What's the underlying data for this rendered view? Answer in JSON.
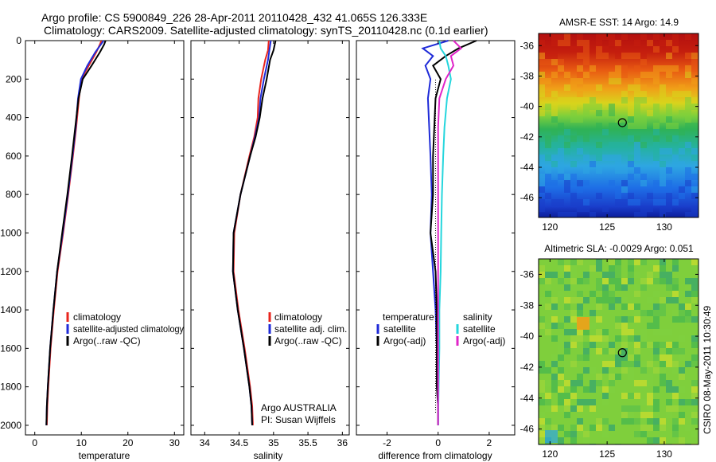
{
  "header": {
    "line1": "Argo profile: CS 5900849_226 28-Apr-2011 20110428_432 41.065S 126.333E",
    "line2": "Climatology: CARS2009. Satellite-adjusted climatology: synTS_20110428.nc (0.1d earlier)"
  },
  "colors": {
    "climatology": "#e8251d",
    "satellite": "#1f2bd8",
    "argo": "#000000",
    "salinity_satellite": "#25d6dd",
    "salinity_argo": "#e025c8"
  },
  "chart_data": [
    {
      "type": "line",
      "name": "temperature-panel",
      "xlabel": "temperature",
      "ylabel": "",
      "xlim": [
        -2,
        32
      ],
      "ylim": [
        2050,
        0
      ],
      "xticks": [
        0,
        10,
        20,
        30
      ],
      "yticks": [
        0,
        200,
        400,
        600,
        800,
        1000,
        1200,
        1400,
        1600,
        1800,
        2000
      ],
      "legend": [
        "climatology",
        "satellite-adjusted climatology",
        "Argo(..raw -QC)"
      ],
      "series": [
        {
          "name": "climatology",
          "x": [
            14.3,
            14.0,
            13.2,
            11.6,
            10.0,
            9.5,
            8.9,
            8.2,
            7.2,
            6.1,
            4.9,
            4.1,
            3.4,
            2.9,
            2.7,
            2.6
          ],
          "y": [
            0,
            20,
            60,
            130,
            200,
            300,
            450,
            600,
            800,
            1000,
            1200,
            1400,
            1600,
            1800,
            1900,
            2000
          ]
        },
        {
          "name": "satellite-adjusted climatology",
          "x": [
            14.8,
            14.2,
            13.0,
            11.3,
            9.9,
            9.3,
            8.8,
            8.1,
            7.1,
            6.0,
            4.8,
            4.0,
            3.3,
            2.8,
            2.6,
            2.5
          ],
          "y": [
            0,
            20,
            60,
            130,
            200,
            300,
            450,
            600,
            800,
            1000,
            1200,
            1400,
            1600,
            1800,
            1900,
            2000
          ]
        },
        {
          "name": "Argo(..raw -QC)",
          "x": [
            15.2,
            14.9,
            14.0,
            12.2,
            10.3,
            9.4,
            8.7,
            8.0,
            7.0,
            5.9,
            4.8,
            4.0,
            3.3,
            2.8,
            2.6,
            2.5
          ],
          "y": [
            0,
            20,
            60,
            130,
            200,
            300,
            450,
            600,
            800,
            1000,
            1200,
            1400,
            1600,
            1800,
            1900,
            2000
          ]
        }
      ]
    },
    {
      "type": "line",
      "name": "salinity-panel",
      "xlabel": "salinity",
      "xlim": [
        33.8,
        36.1
      ],
      "ylim": [
        2050,
        0
      ],
      "xticks": [
        34,
        34.5,
        35,
        35.5,
        36
      ],
      "annotation": [
        "Argo AUSTRALIA",
        "PI: Susan Wijffels"
      ],
      "legend": [
        "climatology",
        "satellite adj. clim.",
        "Argo(..raw -QC)"
      ],
      "series": [
        {
          "name": "climatology",
          "x": [
            34.93,
            34.92,
            34.88,
            34.82,
            34.78,
            34.77,
            34.72,
            34.65,
            34.52,
            34.43,
            34.42,
            34.49,
            34.58,
            34.66,
            34.69,
            34.7
          ],
          "y": [
            0,
            50,
            100,
            200,
            300,
            400,
            500,
            600,
            800,
            1000,
            1200,
            1400,
            1600,
            1800,
            1900,
            2000
          ]
        },
        {
          "name": "satellite adj. clim.",
          "x": [
            34.96,
            34.94,
            34.92,
            34.86,
            34.81,
            34.79,
            34.73,
            34.66,
            34.52,
            34.42,
            34.41,
            34.48,
            34.57,
            34.65,
            34.68,
            34.69
          ],
          "y": [
            0,
            50,
            100,
            200,
            300,
            400,
            500,
            600,
            800,
            1000,
            1200,
            1400,
            1600,
            1800,
            1900,
            2000
          ]
        },
        {
          "name": "Argo(..raw -QC)",
          "x": [
            35.03,
            35.0,
            34.95,
            34.9,
            34.84,
            34.8,
            34.74,
            34.66,
            34.52,
            34.42,
            34.41,
            34.48,
            34.57,
            34.65,
            34.68,
            34.69
          ],
          "y": [
            0,
            50,
            100,
            200,
            300,
            400,
            500,
            600,
            800,
            1000,
            1200,
            1400,
            1600,
            1800,
            1900,
            2000
          ]
        }
      ]
    },
    {
      "type": "line",
      "name": "difference-panel",
      "xlabel": "difference from climatology",
      "xlim": [
        -3.2,
        3.0
      ],
      "ylim": [
        2050,
        0
      ],
      "xticks": [
        -2,
        0,
        2
      ],
      "legend_groups": [
        {
          "title": "temperature",
          "entries": [
            "satellite",
            "Argo(-adj)"
          ]
        },
        {
          "title": "salinity",
          "entries": [
            "satellite",
            "Argo(-adj)"
          ]
        }
      ],
      "series": [
        {
          "name": "temperature satellite",
          "x": [
            0.4,
            -0.6,
            -0.2,
            -0.5,
            -0.3,
            -0.4,
            -0.35,
            -0.3,
            -0.25,
            -0.3,
            -0.2,
            -0.1,
            -0.05,
            -0.05,
            0,
            0
          ],
          "y": [
            0,
            40,
            80,
            130,
            200,
            300,
            450,
            600,
            800,
            1000,
            1200,
            1400,
            1600,
            1800,
            1900,
            2000
          ]
        },
        {
          "name": "temperature Argo(-adj)",
          "x": [
            1.5,
            0.8,
            0.3,
            -0.2,
            0.1,
            -0.1,
            -0.15,
            -0.2,
            -0.2,
            -0.3,
            -0.1,
            -0.05,
            -0.05,
            -0.05,
            0,
            0
          ],
          "y": [
            0,
            40,
            80,
            130,
            200,
            300,
            450,
            600,
            800,
            1000,
            1200,
            1400,
            1600,
            1800,
            1900,
            2000
          ]
        },
        {
          "name": "salinity satellite",
          "x": [
            0.05,
            0.1,
            0.3,
            0.4,
            0.5,
            0.35,
            0.25,
            0.2,
            0.15,
            0.12,
            0.1,
            0.05,
            0.05,
            0.02,
            0.01,
            0.01
          ],
          "y": [
            0,
            40,
            80,
            130,
            200,
            300,
            450,
            600,
            800,
            1000,
            1200,
            1400,
            1600,
            1800,
            1900,
            2000
          ]
        },
        {
          "name": "salinity Argo(-adj)",
          "x": [
            0.6,
            0.9,
            0.5,
            0.6,
            0.3,
            0.05,
            0.0,
            0.0,
            0.0,
            0.0,
            0.0,
            0.0,
            0.0,
            0.0,
            0.0,
            0.0
          ],
          "y": [
            0,
            40,
            80,
            130,
            200,
            300,
            450,
            600,
            800,
            1000,
            1200,
            1400,
            1600,
            1800,
            1900,
            2000
          ]
        }
      ]
    },
    {
      "type": "heatmap",
      "name": "sst-map",
      "title": "AMSR-E SST: 14 Argo: 14.9",
      "xlim": [
        119,
        133
      ],
      "ylim": [
        -47.3,
        -35.2
      ],
      "xticks": [
        120,
        125,
        130
      ],
      "yticks": [
        -36,
        -38,
        -40,
        -42,
        -44,
        -46
      ],
      "marker": {
        "lon": 126.333,
        "lat": -41.065
      }
    },
    {
      "type": "heatmap",
      "name": "sla-map",
      "title": "Altimetric SLA: -0.0029 Argo: 0.051",
      "xlim": [
        119,
        133
      ],
      "ylim": [
        -47,
        -35
      ],
      "xticks": [
        120,
        125,
        130
      ],
      "yticks": [
        -36,
        -38,
        -40,
        -42,
        -44,
        -46
      ],
      "marker": {
        "lon": 126.333,
        "lat": -41.065
      }
    }
  ],
  "footer": {
    "side_label": "CSIRO 08-May-2011 10:30:49"
  }
}
